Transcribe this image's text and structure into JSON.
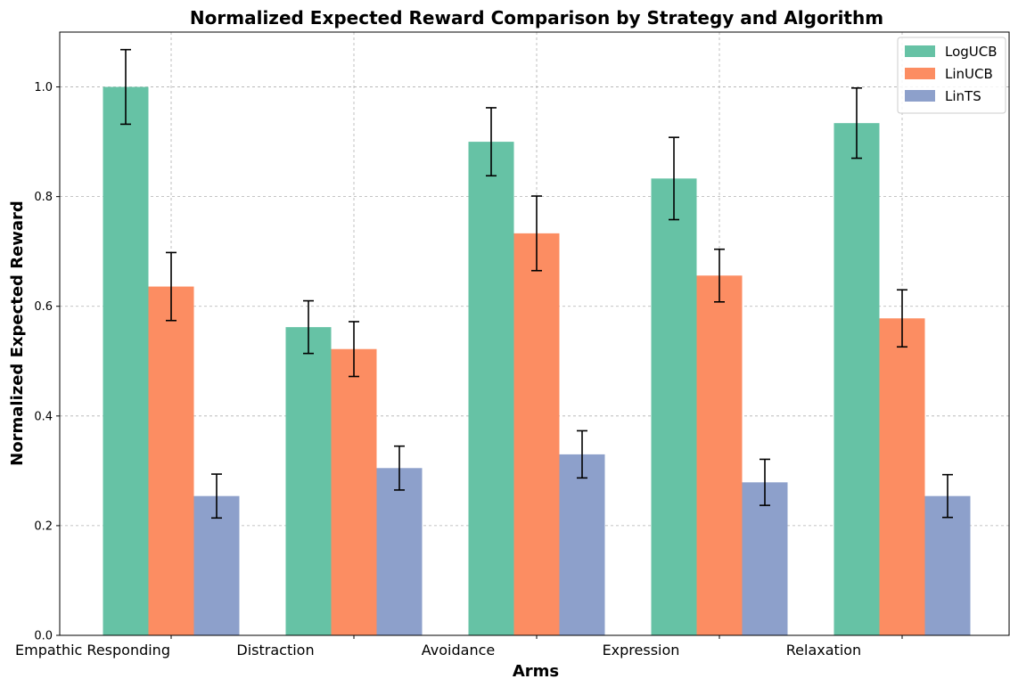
{
  "chart_data": {
    "type": "bar",
    "title": "Normalized Expected Reward Comparison by Strategy and Algorithm",
    "xlabel": "Arms",
    "ylabel": "Normalized Expected Reward",
    "categories": [
      "Empathic Responding",
      "Distraction",
      "Avoidance",
      "Expression",
      "Relaxation"
    ],
    "ylim": [
      0,
      1.1
    ],
    "yticks": [
      "0.0",
      "0.2",
      "0.4",
      "0.6",
      "0.8",
      "1.0"
    ],
    "grid": true,
    "legend_position": "top-right",
    "series": [
      {
        "name": "LogUCB",
        "color": "#66c2a5",
        "values": [
          1.0,
          0.562,
          0.9,
          0.833,
          0.934
        ],
        "errors": [
          0.068,
          0.048,
          0.062,
          0.075,
          0.064
        ]
      },
      {
        "name": "LinUCB",
        "color": "#fc8d62",
        "values": [
          0.636,
          0.522,
          0.733,
          0.656,
          0.578
        ],
        "errors": [
          0.062,
          0.05,
          0.068,
          0.048,
          0.052
        ]
      },
      {
        "name": "LinTS",
        "color": "#8da0cb",
        "values": [
          0.254,
          0.305,
          0.33,
          0.279,
          0.254
        ],
        "errors": [
          0.04,
          0.04,
          0.043,
          0.042,
          0.039
        ]
      }
    ]
  }
}
